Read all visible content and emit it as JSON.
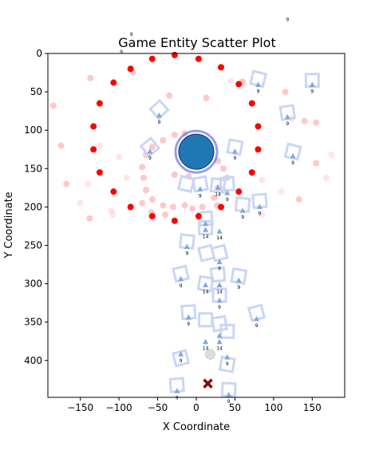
{
  "chart_data": {
    "type": "scatter",
    "title": "Game Entity Scatter Plot",
    "xlabel": "X Coordinate",
    "ylabel": "Y Coordinate",
    "xlim": [
      -192,
      192
    ],
    "ylim": [
      448,
      0
    ],
    "y_inverted": true,
    "grid": false,
    "legend": "none",
    "x_ticks": [
      -150,
      -100,
      -50,
      0,
      50,
      100,
      150
    ],
    "x_tick_labels": [
      "−150",
      "−100",
      "−50",
      "0",
      "50",
      "100",
      "150"
    ],
    "y_ticks": [
      0,
      50,
      100,
      150,
      200,
      250,
      300,
      350,
      400
    ],
    "y_tick_labels": [
      "0",
      "50",
      "100",
      "150",
      "200",
      "250",
      "300",
      "350",
      "400"
    ],
    "colors": {
      "red": "#ff0000",
      "pink": "#ffb5b5",
      "blue_marker": "#1f77b4",
      "blue_ring": "#4b5fd6",
      "square": "#c9d6f5",
      "triangle": "#7fa8e0",
      "cross": "#8b0000",
      "gray": "#dddddd"
    },
    "series": [
      {
        "marker": "circle-red",
        "points": [
          [
            -28,
            2
          ],
          [
            3,
            7
          ],
          [
            -57,
            7
          ],
          [
            32,
            18
          ],
          [
            -85,
            20
          ],
          [
            -107,
            38
          ],
          [
            55,
            40
          ],
          [
            -125,
            65
          ],
          [
            72,
            65
          ],
          [
            -133,
            95
          ],
          [
            80,
            95
          ],
          [
            -133,
            125
          ],
          [
            80,
            125
          ],
          [
            -125,
            155
          ],
          [
            72,
            155
          ],
          [
            -107,
            180
          ],
          [
            55,
            180
          ],
          [
            -85,
            200
          ],
          [
            -57,
            212
          ],
          [
            3,
            212
          ],
          [
            32,
            200
          ],
          [
            -28,
            218
          ]
        ]
      },
      {
        "marker": "circle-pink",
        "points": [
          [
            -82,
            25
          ],
          [
            -137,
            32
          ],
          [
            -185,
            68
          ],
          [
            -175,
            120
          ],
          [
            -168,
            170
          ],
          [
            -138,
            215
          ],
          [
            -35,
            55
          ],
          [
            13,
            58
          ],
          [
            60,
            37
          ],
          [
            115,
            50
          ],
          [
            140,
            88
          ],
          [
            155,
            90
          ],
          [
            155,
            143
          ],
          [
            133,
            190
          ],
          [
            -70,
            148
          ],
          [
            -68,
            162
          ],
          [
            -65,
            178
          ],
          [
            -57,
            190
          ],
          [
            -43,
            198
          ],
          [
            -30,
            200
          ],
          [
            -15,
            198
          ],
          [
            -5,
            202
          ],
          [
            8,
            200
          ],
          [
            27,
            198
          ],
          [
            23,
            188
          ],
          [
            35,
            178
          ],
          [
            28,
            175
          ],
          [
            40,
            162
          ],
          [
            35,
            150
          ],
          [
            28,
            140
          ],
          [
            17,
            128
          ],
          [
            -15,
            104
          ],
          [
            -28,
            106
          ],
          [
            -43,
            113
          ],
          [
            -57,
            122
          ],
          [
            -65,
            132
          ],
          [
            -28,
            158
          ],
          [
            -10,
            160
          ],
          [
            -58,
            207
          ],
          [
            -70,
            195
          ],
          [
            -40,
            210
          ]
        ]
      },
      {
        "marker": "circle-pink-faint",
        "points": [
          [
            -100,
            135
          ],
          [
            -125,
            120
          ],
          [
            -90,
            162
          ],
          [
            -140,
            170
          ],
          [
            -108,
            210
          ],
          [
            -150,
            195
          ],
          [
            -110,
            205
          ],
          [
            45,
            36
          ],
          [
            58,
            37
          ],
          [
            123,
            85
          ],
          [
            175,
            132
          ],
          [
            168,
            162
          ],
          [
            110,
            180
          ],
          [
            85,
            210
          ],
          [
            85,
            165
          ]
        ]
      },
      {
        "marker": "square-hollow",
        "points": [
          [
            80,
            33
          ],
          [
            150,
            35
          ],
          [
            -48,
            73
          ],
          [
            118,
            77
          ],
          [
            -60,
            122
          ],
          [
            50,
            122
          ],
          [
            125,
            128
          ],
          [
            5,
            170
          ],
          [
            40,
            170
          ],
          [
            -13,
            170
          ],
          [
            28,
            172
          ],
          [
            82,
            192
          ],
          [
            60,
            197
          ],
          [
            12,
            215
          ],
          [
            12,
            227
          ],
          [
            -12,
            245
          ],
          [
            13,
            260
          ],
          [
            30,
            260
          ],
          [
            -20,
            287
          ],
          [
            28,
            288
          ],
          [
            12,
            300
          ],
          [
            55,
            290
          ],
          [
            30,
            315
          ],
          [
            -10,
            337
          ],
          [
            12,
            347
          ],
          [
            78,
            338
          ],
          [
            30,
            352
          ],
          [
            40,
            362
          ],
          [
            -20,
            397
          ],
          [
            40,
            405
          ],
          [
            -25,
            432
          ],
          [
            42,
            438
          ]
        ]
      },
      {
        "marker": "triangle",
        "label": "9",
        "points": [
          [
            80,
            41
          ],
          [
            150,
            41
          ],
          [
            -48,
            81
          ],
          [
            118,
            83
          ],
          [
            -60,
            128
          ],
          [
            50,
            128
          ],
          [
            125,
            134
          ],
          [
            5,
            177
          ],
          [
            40,
            182
          ],
          [
            82,
            200
          ],
          [
            60,
            205
          ],
          [
            12,
            222
          ],
          [
            -12,
            252
          ],
          [
            30,
            272
          ],
          [
            -20,
            294
          ],
          [
            55,
            296
          ],
          [
            30,
            322
          ],
          [
            -10,
            344
          ],
          [
            78,
            346
          ],
          [
            30,
            368
          ],
          [
            -20,
            392
          ],
          [
            40,
            396
          ],
          [
            -25,
            440
          ],
          [
            42,
            445
          ]
        ]
      },
      {
        "marker": "triangle",
        "label": "14",
        "points": [
          [
            28,
            175
          ],
          [
            12,
            230
          ],
          [
            30,
            232
          ],
          [
            12,
            302
          ],
          [
            30,
            302
          ],
          [
            12,
            376
          ],
          [
            30,
            376
          ]
        ]
      },
      {
        "marker": "big-circle-blue",
        "points": [
          [
            0,
            128
          ]
        ]
      },
      {
        "marker": "circle-gray",
        "points": [
          [
            18,
            392
          ]
        ]
      },
      {
        "marker": "x-cross",
        "points": [
          [
            15,
            430
          ]
        ]
      }
    ],
    "annotations": [
      {
        "text": "9",
        "x": -84,
        "y": -23
      },
      {
        "text": "9",
        "x": -97,
        "y": 0
      },
      {
        "text": "9",
        "x": 118,
        "y": -42
      }
    ]
  }
}
